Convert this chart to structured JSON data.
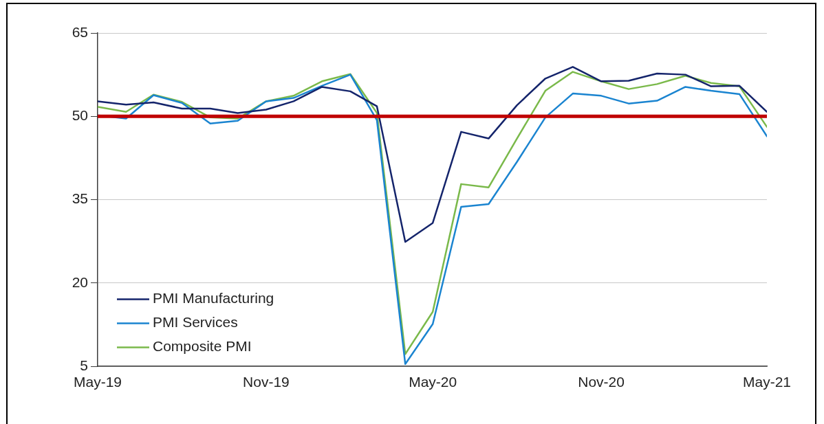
{
  "chart_data": {
    "type": "line",
    "x": [
      "2019-05",
      "2019-06",
      "2019-07",
      "2019-08",
      "2019-09",
      "2019-10",
      "2019-11",
      "2019-12",
      "2020-01",
      "2020-02",
      "2020-03",
      "2020-04",
      "2020-05",
      "2020-06",
      "2020-07",
      "2020-08",
      "2020-09",
      "2020-10",
      "2020-11",
      "2020-12",
      "2021-01",
      "2021-02",
      "2021-03",
      "2021-04",
      "2021-05"
    ],
    "series": [
      {
        "name": "PMI Manufacturing",
        "color": "#14246b",
        "values": [
          52.7,
          52.1,
          52.5,
          51.4,
          51.4,
          50.6,
          51.2,
          52.7,
          55.3,
          54.5,
          51.8,
          27.4,
          30.8,
          47.2,
          46.0,
          52.0,
          56.8,
          58.9,
          56.3,
          56.4,
          57.7,
          57.5,
          55.4,
          55.5,
          50.8
        ]
      },
      {
        "name": "PMI Services",
        "color": "#1a84d0",
        "values": [
          50.2,
          49.6,
          53.8,
          52.4,
          48.7,
          49.2,
          52.7,
          53.3,
          55.5,
          57.5,
          49.3,
          5.4,
          12.6,
          33.7,
          34.2,
          41.8,
          49.8,
          54.1,
          53.7,
          52.3,
          52.8,
          55.3,
          54.6,
          54.0,
          46.4
        ]
      },
      {
        "name": "Composite PMI",
        "color": "#7ab94a",
        "values": [
          51.7,
          50.8,
          53.9,
          52.6,
          49.8,
          49.6,
          52.7,
          53.7,
          56.3,
          57.6,
          50.6,
          7.2,
          14.8,
          37.8,
          37.2,
          46.0,
          54.6,
          58.0,
          56.3,
          54.9,
          55.8,
          57.3,
          56.0,
          55.4,
          48.1
        ]
      }
    ],
    "xlim": [
      "2019-05",
      "2021-05"
    ],
    "xticks": [
      {
        "value": "2019-05",
        "label": "May-19"
      },
      {
        "value": "2019-11",
        "label": "Nov-19"
      },
      {
        "value": "2020-05",
        "label": "May-20"
      },
      {
        "value": "2020-11",
        "label": "Nov-20"
      },
      {
        "value": "2021-05",
        "label": "May-21"
      }
    ],
    "ylim": [
      5,
      65
    ],
    "yticks": [
      5,
      20,
      35,
      50,
      65
    ],
    "grid": "y",
    "legend": "bottom left",
    "marker": "none",
    "line_style": "solid",
    "ref_lines": [
      {
        "axis": "y",
        "value": 50,
        "color": "#c00000"
      }
    ]
  }
}
